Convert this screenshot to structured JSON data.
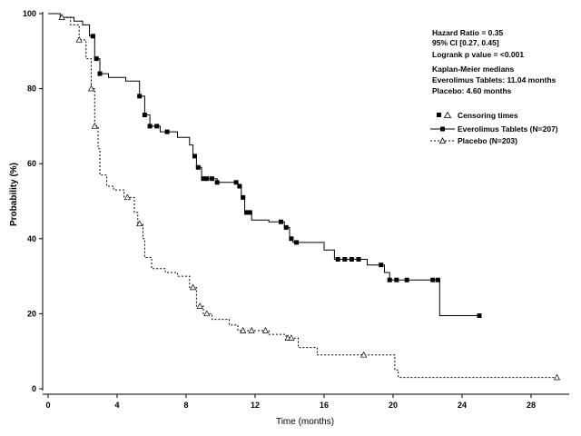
{
  "chart_data": {
    "type": "line",
    "subtype": "kaplan-meier",
    "title": "",
    "xlabel": "Time (months)",
    "ylabel": "Probability (%)",
    "xlim": [
      0,
      30
    ],
    "ylim": [
      0,
      100
    ],
    "xticks": [
      "0",
      "4",
      "8",
      "12",
      "16",
      "20",
      "24",
      "28"
    ],
    "yticks": [
      "0",
      "20",
      "40",
      "60",
      "80",
      "100"
    ],
    "grid": false,
    "legend_position": "top-right",
    "annotations": {
      "hazard_ratio": "Hazard Ratio = 0.35",
      "ci": "95% CI [0.27, 0.45]",
      "logrank": "Logrank p value = <0.001",
      "km_title": "Kaplan-Meier medians",
      "km_everolimus": "Everolimus Tablets: 11.04 months",
      "km_placebo": "Placebo: 4.60 months"
    },
    "legend": {
      "censoring": "Censoring times",
      "everolimus": "Everolimus Tablets (N=207)",
      "placebo": "Placebo (N=203)"
    },
    "series": [
      {
        "name": "Everolimus Tablets (N=207)",
        "style": "solid",
        "color": "#000000",
        "marker": "square",
        "points": [
          [
            0,
            100
          ],
          [
            0.7,
            99
          ],
          [
            1.5,
            98
          ],
          [
            2.0,
            97
          ],
          [
            2.4,
            94
          ],
          [
            2.7,
            88
          ],
          [
            3.0,
            84
          ],
          [
            3.5,
            83
          ],
          [
            4.5,
            82
          ],
          [
            5.3,
            78
          ],
          [
            5.6,
            73
          ],
          [
            5.9,
            70
          ],
          [
            6.5,
            68.5
          ],
          [
            7.5,
            67
          ],
          [
            8.2,
            65
          ],
          [
            8.4,
            62
          ],
          [
            8.6,
            59
          ],
          [
            8.9,
            56
          ],
          [
            9.8,
            55
          ],
          [
            11.0,
            54
          ],
          [
            11.2,
            51
          ],
          [
            11.4,
            47
          ],
          [
            11.8,
            45
          ],
          [
            12.8,
            44.5
          ],
          [
            13.7,
            43
          ],
          [
            14.0,
            40
          ],
          [
            14.2,
            39
          ],
          [
            16.0,
            37
          ],
          [
            16.6,
            34.5
          ],
          [
            18.5,
            33
          ],
          [
            19.5,
            31
          ],
          [
            19.8,
            29
          ],
          [
            21.0,
            29
          ],
          [
            22.7,
            19.5
          ],
          [
            25.0,
            19.5
          ]
        ],
        "censor_times": [
          2.6,
          2.8,
          3.0,
          5.3,
          5.6,
          5.9,
          6.3,
          6.9,
          8.5,
          8.7,
          9.0,
          9.2,
          9.5,
          9.8,
          10.9,
          11.1,
          11.3,
          11.5,
          11.7,
          13.5,
          13.8,
          14.1,
          14.4,
          16.8,
          17.2,
          17.6,
          18.0,
          19.3,
          19.8,
          20.2,
          20.8,
          22.3,
          22.6,
          25.0
        ]
      },
      {
        "name": "Placebo (N=203)",
        "style": "dotted",
        "color": "#000000",
        "marker": "triangle",
        "points": [
          [
            0,
            100
          ],
          [
            0.8,
            99
          ],
          [
            1.3,
            97
          ],
          [
            1.8,
            93
          ],
          [
            2.2,
            88
          ],
          [
            2.5,
            80
          ],
          [
            2.7,
            70
          ],
          [
            2.9,
            64
          ],
          [
            3.0,
            57
          ],
          [
            3.4,
            54
          ],
          [
            3.8,
            53
          ],
          [
            4.4,
            51
          ],
          [
            5.0,
            47
          ],
          [
            5.2,
            44
          ],
          [
            5.5,
            40
          ],
          [
            5.6,
            35
          ],
          [
            6.0,
            32
          ],
          [
            6.8,
            31
          ],
          [
            7.5,
            30
          ],
          [
            8.2,
            27
          ],
          [
            8.6,
            22
          ],
          [
            9.0,
            20
          ],
          [
            9.5,
            18.5
          ],
          [
            10.5,
            17
          ],
          [
            11.0,
            15.5
          ],
          [
            12.8,
            14.5
          ],
          [
            13.8,
            13.5
          ],
          [
            14.5,
            11
          ],
          [
            15.6,
            9
          ],
          [
            18.8,
            9
          ],
          [
            20.1,
            5
          ],
          [
            20.3,
            3
          ],
          [
            29.5,
            3
          ]
        ],
        "censor_times": [
          0.8,
          1.8,
          2.5,
          2.7,
          4.6,
          5.3,
          8.4,
          8.8,
          9.2,
          11.3,
          11.8,
          12.6,
          13.9,
          14.1,
          18.3,
          29.5
        ]
      }
    ]
  }
}
